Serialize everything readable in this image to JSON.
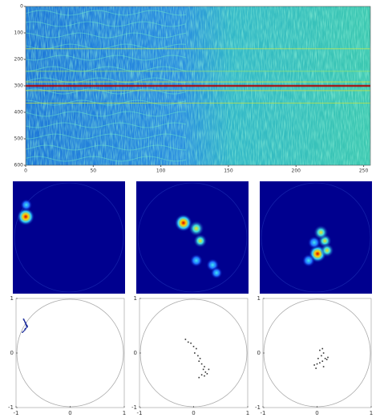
{
  "chart_data": [
    {
      "type": "spectrogram",
      "xlim": [
        0,
        255
      ],
      "ylim": [
        0,
        600
      ],
      "y_inverted": true,
      "xticks": [
        0,
        50,
        100,
        150,
        200,
        250
      ],
      "yticks": [
        0,
        100,
        200,
        300,
        400,
        500,
        600
      ],
      "bands": {
        "y": [
          160,
          245,
          285,
          300,
          318,
          365
        ],
        "colors": [
          "#c8e850",
          "#a0e860",
          "#e8e020",
          "#b00000",
          "#d8e030",
          "#c0e040"
        ]
      }
    },
    {
      "type": "heatmap",
      "x": [
        -0.77,
        -0.76
      ],
      "y": [
        0.37,
        0.58
      ],
      "values": [
        1,
        0.4
      ]
    },
    {
      "type": "heatmap",
      "x": [
        -0.16,
        0.07,
        0.14,
        0.07,
        0.36,
        0.43
      ],
      "y": [
        0.26,
        0.16,
        -0.06,
        -0.41,
        -0.49,
        -0.63
      ],
      "values": [
        1,
        0.8,
        0.6,
        0.5,
        0.5,
        0.4
      ]
    },
    {
      "type": "heatmap",
      "x": [
        0.03,
        0.16,
        0.09,
        -0.13,
        0.2,
        -0.03
      ],
      "y": [
        -0.29,
        -0.06,
        0.09,
        -0.41,
        -0.23,
        -0.09
      ],
      "values": [
        1,
        0.6,
        0.7,
        0.5,
        0.6,
        0.5
      ]
    },
    {
      "type": "scatter",
      "color": "#1a2a9a",
      "xlim": [
        -1,
        1
      ],
      "ylim": [
        -1,
        1
      ],
      "xticks": [
        -1,
        0,
        1
      ],
      "yticks": [
        -1,
        0,
        1
      ],
      "x": [
        -0.86,
        -0.85,
        -0.84,
        -0.83,
        -0.82,
        -0.82,
        -0.81,
        -0.8,
        -0.79,
        -0.8,
        -0.82,
        -0.84,
        -0.86,
        -0.88,
        -0.83,
        -0.81
      ],
      "y": [
        0.62,
        0.6,
        0.58,
        0.56,
        0.55,
        0.53,
        0.52,
        0.5,
        0.49,
        0.47,
        0.45,
        0.42,
        0.4,
        0.38,
        0.44,
        0.5
      ]
    },
    {
      "type": "scatter",
      "color": "#333333",
      "xlim": [
        -1,
        1
      ],
      "ylim": [
        -1,
        1
      ],
      "xticks": [
        -1,
        0,
        1
      ],
      "yticks": [
        -1,
        0,
        1
      ],
      "x": [
        -0.15,
        -0.1,
        -0.05,
        0.0,
        0.05,
        0.02,
        0.08,
        0.12,
        0.1,
        0.15,
        0.2,
        0.18,
        0.22,
        0.25,
        0.2,
        0.15,
        0.1,
        0.28
      ],
      "y": [
        0.25,
        0.2,
        0.18,
        0.12,
        0.08,
        0.0,
        -0.05,
        -0.1,
        -0.15,
        -0.2,
        -0.25,
        -0.3,
        -0.35,
        -0.38,
        -0.42,
        -0.4,
        -0.45,
        -0.3
      ]
    },
    {
      "type": "scatter",
      "color": "#333333",
      "xlim": [
        -1,
        1
      ],
      "ylim": [
        -1,
        1
      ],
      "xticks": [
        -1,
        0,
        1
      ],
      "yticks": [
        -1,
        0,
        1
      ],
      "x": [
        0.05,
        0.1,
        0.12,
        0.08,
        0.15,
        0.2,
        0.1,
        0.0,
        -0.05,
        0.05,
        0.12,
        0.18,
        0.02,
        -0.02
      ],
      "y": [
        0.05,
        0.08,
        0.0,
        -0.05,
        -0.1,
        -0.08,
        -0.15,
        -0.2,
        -0.22,
        -0.18,
        -0.25,
        -0.12,
        -0.1,
        -0.28
      ]
    }
  ]
}
